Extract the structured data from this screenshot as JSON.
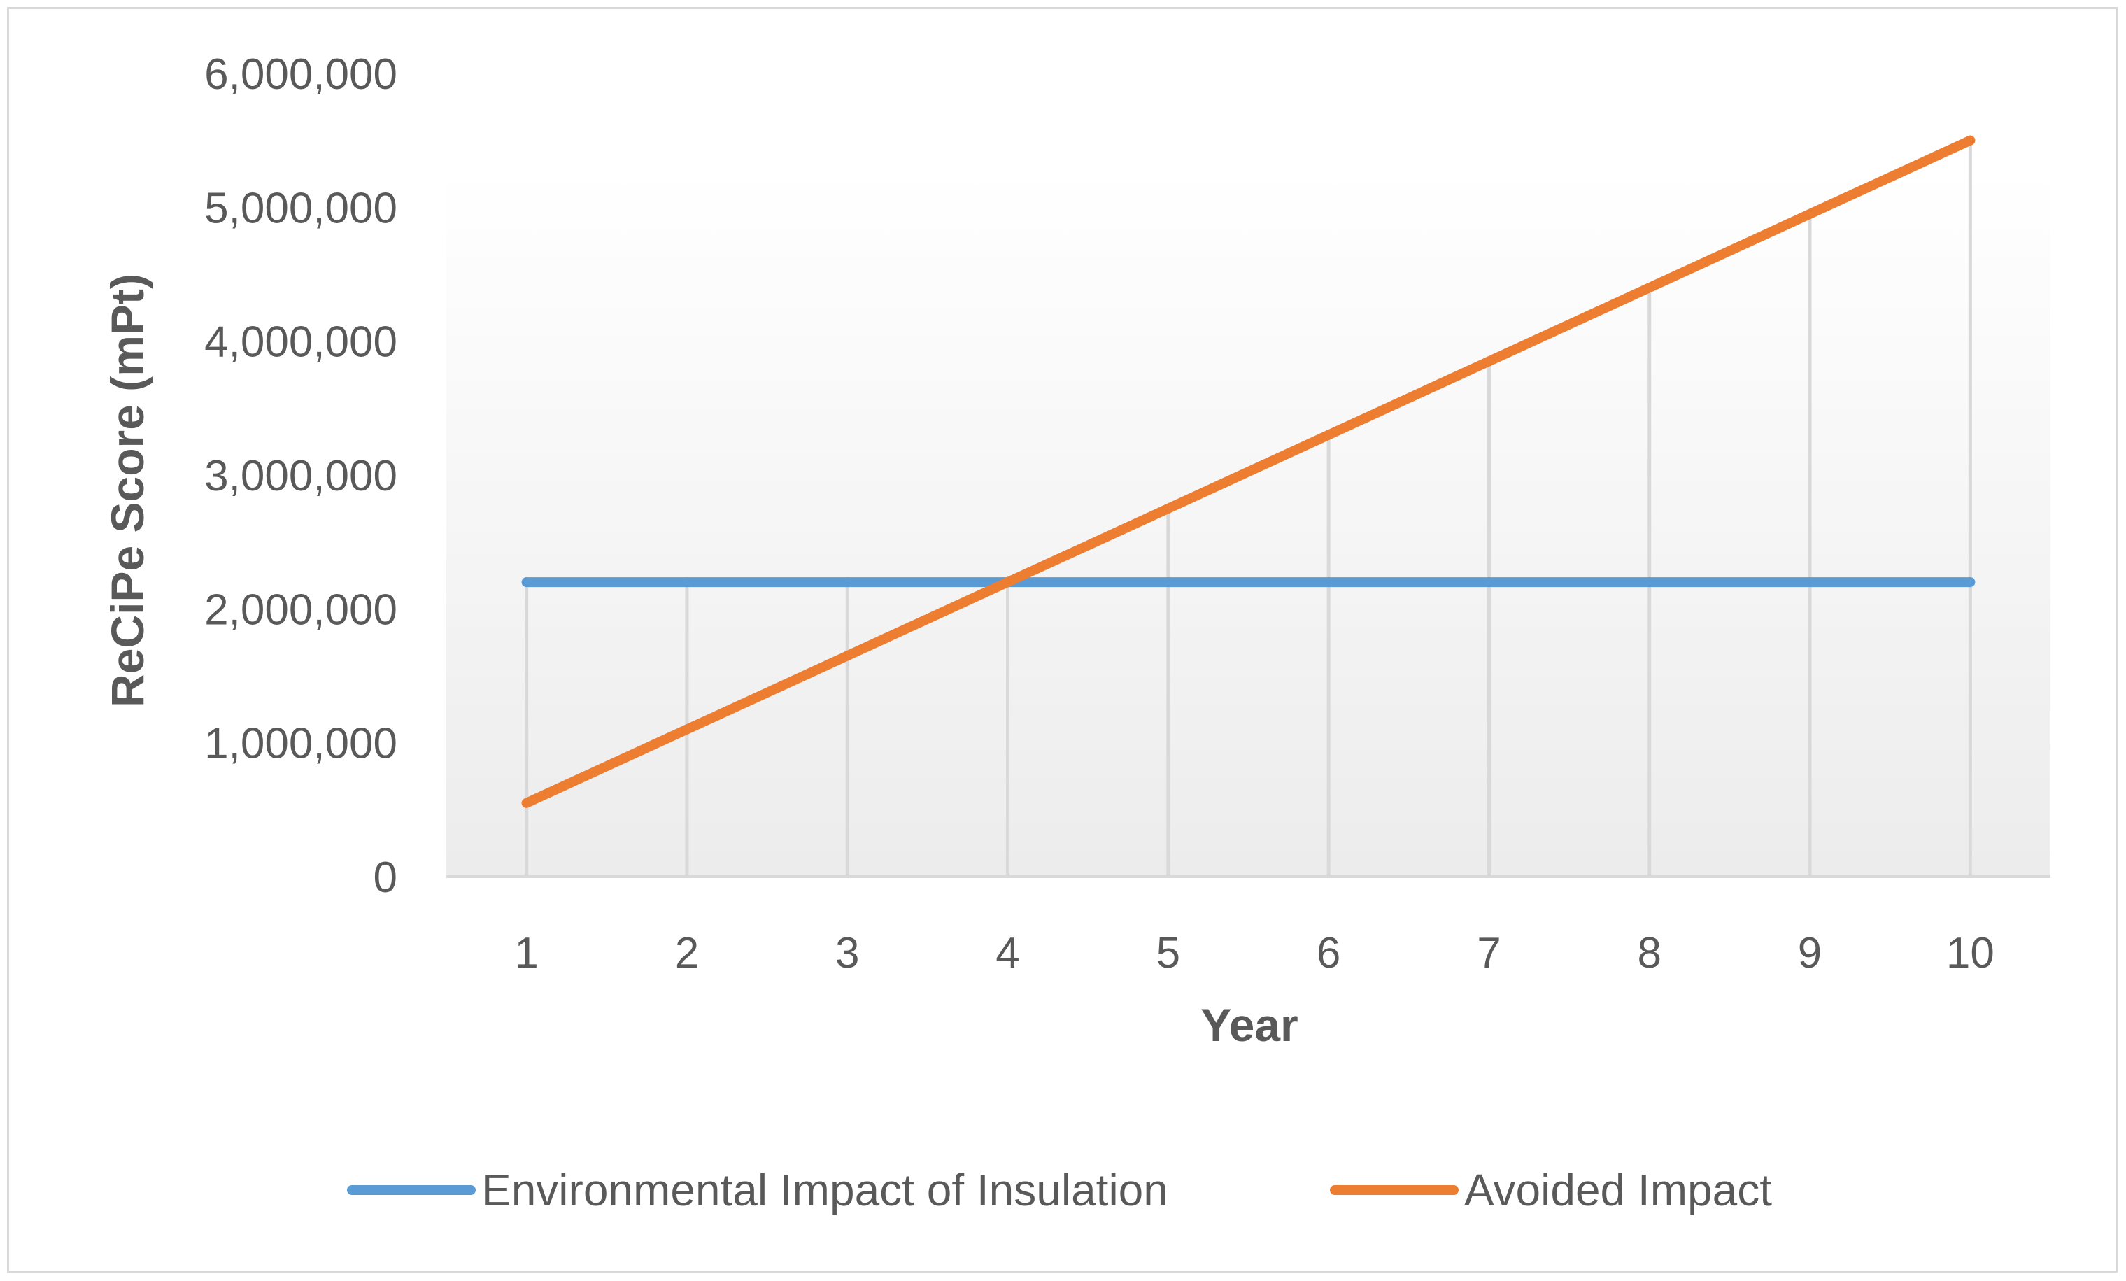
{
  "chart_data": {
    "type": "line",
    "title": "",
    "xlabel": "Year",
    "ylabel": "ReCiPe Score (mPt)",
    "categories": [
      "1",
      "2",
      "3",
      "4",
      "5",
      "6",
      "7",
      "8",
      "9",
      "10"
    ],
    "ylim": [
      0,
      6000000
    ],
    "yticks": [
      0,
      1000000,
      2000000,
      3000000,
      4000000,
      5000000,
      6000000
    ],
    "ytick_labels": [
      "0",
      "1,000,000",
      "2,000,000",
      "3,000,000",
      "4,000,000",
      "5,000,000",
      "6,000,000"
    ],
    "grid": "vertical",
    "legend_position": "bottom",
    "series": [
      {
        "name": "Environmental Impact of Insulation",
        "color": "#5b9bd5",
        "values": [
          2200000,
          2200000,
          2200000,
          2200000,
          2200000,
          2200000,
          2200000,
          2200000,
          2200000,
          2200000
        ]
      },
      {
        "name": "Avoided Impact",
        "color": "#ed7d31",
        "values": [
          550000,
          1100000,
          1650000,
          2200000,
          2750000,
          3300000,
          3850000,
          4400000,
          4950000,
          5500000
        ]
      }
    ]
  }
}
